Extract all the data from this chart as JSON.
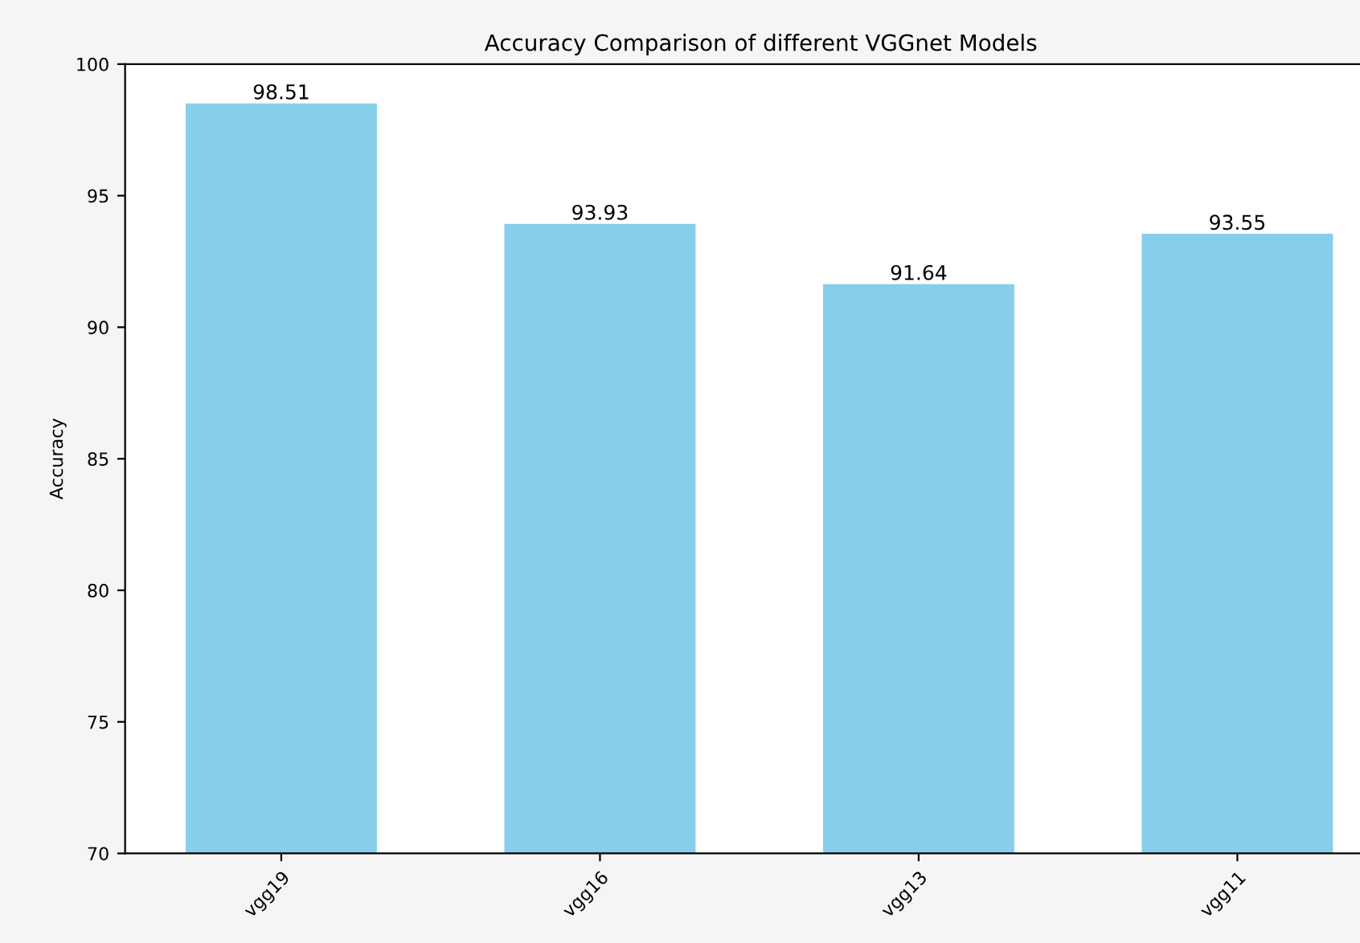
{
  "chart_data": {
    "type": "bar",
    "title": "Accuracy Comparison of different VGGnet Models",
    "ylabel": "Accuracy",
    "categories": [
      "vgg19",
      "vgg16",
      "vgg13",
      "vgg11"
    ],
    "values": [
      98.51,
      93.93,
      91.64,
      93.55
    ],
    "color": "#87ceeb",
    "ylim": [
      70,
      100
    ],
    "yticks": [
      70,
      75,
      80,
      85,
      90,
      95,
      100
    ],
    "data_labels": true
  }
}
